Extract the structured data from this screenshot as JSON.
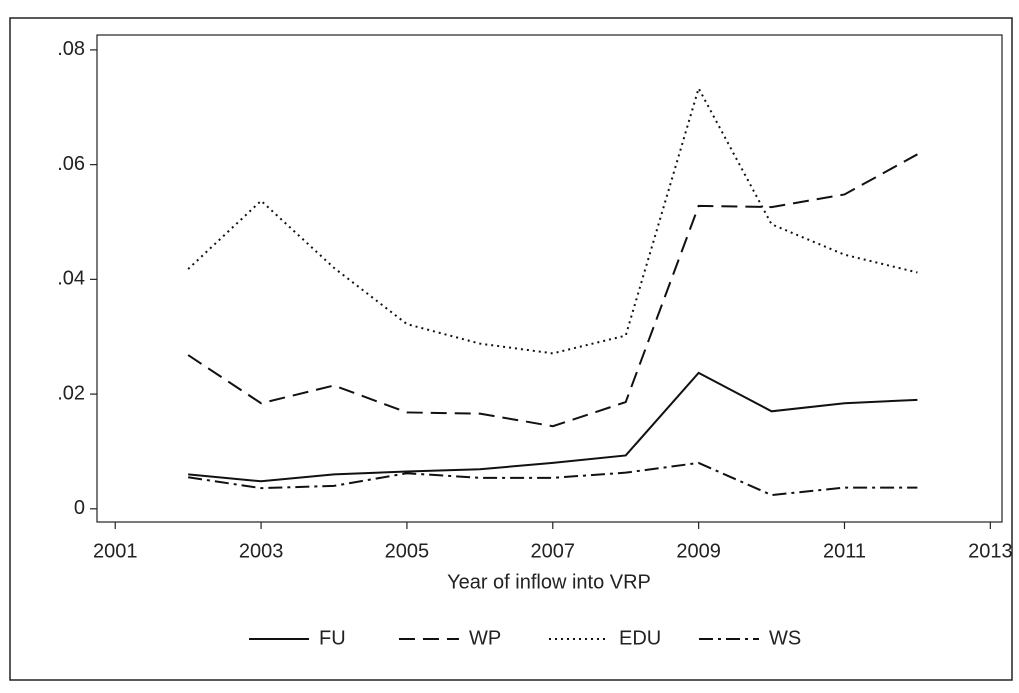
{
  "chart_data": {
    "type": "line",
    "x_label": "Year of inflow into VRP",
    "x": [
      2002,
      2003,
      2004,
      2005,
      2006,
      2007,
      2008,
      2009,
      2010,
      2011,
      2012
    ],
    "series": [
      {
        "name": "FU",
        "color": "#111111",
        "dash": "none",
        "values": [
          0.006,
          0.0048,
          0.006,
          0.0065,
          0.0069,
          0.008,
          0.0093,
          0.0237,
          0.017,
          0.0184,
          0.019
        ]
      },
      {
        "name": "WP",
        "color": "#111111",
        "dash": "16 8",
        "values": [
          0.0268,
          0.0184,
          0.0215,
          0.0168,
          0.0166,
          0.0144,
          0.0186,
          0.0528,
          0.0526,
          0.0548,
          0.0618
        ]
      },
      {
        "name": "EDU",
        "color": "#111111",
        "dash": "2 4",
        "values": [
          0.0418,
          0.0537,
          0.042,
          0.0322,
          0.0288,
          0.0271,
          0.0302,
          0.0733,
          0.0496,
          0.0443,
          0.0412
        ]
      },
      {
        "name": "WS",
        "color": "#111111",
        "dash": "14 5 3 5",
        "values": [
          0.0055,
          0.0036,
          0.004,
          0.0062,
          0.0054,
          0.0054,
          0.0063,
          0.008,
          0.0024,
          0.0037,
          0.0037
        ]
      }
    ],
    "xlim": [
      2000.75,
      2013.16
    ],
    "xticks": [
      2001,
      2003,
      2005,
      2007,
      2009,
      2011,
      2013
    ],
    "ylim": [
      -0.0023,
      0.0826
    ],
    "yticks": [
      0,
      {
        "value": 0.02,
        "label": ".02"
      },
      {
        "value": 0.04,
        "label": ".04"
      },
      {
        "value": 0.06,
        "label": ".06"
      },
      {
        "value": 0.08,
        "label": ".08"
      }
    ],
    "grid": false,
    "legend": "bottom"
  }
}
